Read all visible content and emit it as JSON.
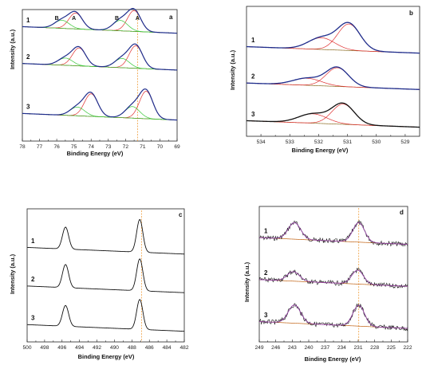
{
  "figure": {
    "panels": [
      "a",
      "b",
      "c",
      "d"
    ],
    "xlabel": "Binding Energy (eV)",
    "ylabel": "Intensity (a.u.)"
  },
  "chart_data": [
    {
      "panel": "a",
      "type": "line",
      "xlabel": "Binding Energy (eV)",
      "ylabel": "Intensity (a.u.)",
      "xlim": [
        78,
        69
      ],
      "xticks": [
        "78",
        "77",
        "76",
        "75",
        "74",
        "73",
        "72",
        "71",
        "70",
        "69"
      ],
      "x_reversed": true,
      "reference_line": 71.3,
      "trace_labels": [
        "1",
        "2",
        "3"
      ],
      "peak_labels": [
        "B",
        "A",
        "B",
        "A"
      ],
      "curves": [
        {
          "label": "1",
          "peaks": [
            {
              "center": 74.9,
              "height": 0.55,
              "width": 0.55
            },
            {
              "center": 71.5,
              "height": 0.72,
              "width": 0.55
            },
            {
              "center": 75.7,
              "height": 0.28,
              "width": 0.6
            },
            {
              "center": 72.3,
              "height": 0.36,
              "width": 0.6
            }
          ]
        },
        {
          "label": "2",
          "peaks": [
            {
              "center": 74.7,
              "height": 0.62,
              "width": 0.55
            },
            {
              "center": 71.4,
              "height": 0.78,
              "width": 0.55
            },
            {
              "center": 75.5,
              "height": 0.25,
              "width": 0.6
            },
            {
              "center": 72.2,
              "height": 0.32,
              "width": 0.6
            }
          ]
        },
        {
          "label": "3",
          "peaks": [
            {
              "center": 74.0,
              "height": 0.78,
              "width": 0.55
            },
            {
              "center": 70.8,
              "height": 0.95,
              "width": 0.55
            },
            {
              "center": 74.8,
              "height": 0.3,
              "width": 0.6
            },
            {
              "center": 71.6,
              "height": 0.4,
              "width": 0.6
            }
          ]
        }
      ],
      "colors": {
        "envelope": "#1f2d8c",
        "component_A": "#e03030",
        "component_B": "#38c838",
        "baseline": "#8a6a20",
        "reference": "#f0a040"
      }
    },
    {
      "panel": "b",
      "type": "line",
      "xlabel": "Binding Energy (eV)",
      "ylabel": "Intensity (a.u.)",
      "xlim": [
        534.5,
        528.5
      ],
      "xticks": [
        "534",
        "533",
        "532",
        "531",
        "530",
        "529"
      ],
      "x_reversed": true,
      "trace_labels": [
        "1",
        "2",
        "3"
      ],
      "curves": [
        {
          "label": "1",
          "peaks": [
            {
              "center": 530.95,
              "height": 0.68,
              "width": 0.55
            },
            {
              "center": 531.9,
              "height": 0.3,
              "width": 0.65
            }
          ]
        },
        {
          "label": "2",
          "peaks": [
            {
              "center": 531.35,
              "height": 0.48,
              "width": 0.55
            },
            {
              "center": 532.4,
              "height": 0.18,
              "width": 0.7
            }
          ]
        },
        {
          "label": "3",
          "peaks": [
            {
              "center": 531.15,
              "height": 0.52,
              "width": 0.55
            },
            {
              "center": 532.2,
              "height": 0.24,
              "width": 0.7
            }
          ]
        }
      ],
      "colors": {
        "envelope_1": "#1f2d8c",
        "envelope_2": "#1f2d8c",
        "envelope_3": "#111111",
        "component": "#e03030",
        "baseline": "#8a6a20"
      }
    },
    {
      "panel": "c",
      "type": "line",
      "xlabel": "Binding Energy (eV)",
      "ylabel": "Intensity (a.u.)",
      "xlim": [
        500,
        482
      ],
      "xticks": [
        "500",
        "498",
        "496",
        "494",
        "492",
        "490",
        "488",
        "486",
        "484",
        "482"
      ],
      "x_reversed": true,
      "reference_line": 486.9,
      "trace_labels": [
        "1",
        "2",
        "3"
      ],
      "curves": [
        {
          "label": "1",
          "peaks": [
            {
              "center": 495.6,
              "height": 0.55,
              "width": 0.5
            },
            {
              "center": 487.1,
              "height": 0.82,
              "width": 0.5
            }
          ]
        },
        {
          "label": "2",
          "peaks": [
            {
              "center": 495.6,
              "height": 0.58,
              "width": 0.5
            },
            {
              "center": 487.1,
              "height": 0.8,
              "width": 0.5
            }
          ]
        },
        {
          "label": "3",
          "peaks": [
            {
              "center": 495.6,
              "height": 0.52,
              "width": 0.5
            },
            {
              "center": 487.1,
              "height": 0.75,
              "width": 0.5
            }
          ]
        }
      ],
      "colors": {
        "line": "#111111",
        "reference": "#f0a040"
      }
    },
    {
      "panel": "d",
      "type": "line",
      "xlabel": "Binding Energy (eV)",
      "ylabel": "Intensity (a.u.)",
      "xlim": [
        249,
        222
      ],
      "xticks": [
        "249",
        "246",
        "243",
        "240",
        "237",
        "234",
        "231",
        "228",
        "225",
        "222"
      ],
      "x_reversed": true,
      "reference_line": 230.9,
      "trace_labels": [
        "1",
        "2",
        "3"
      ],
      "curves": [
        {
          "label": "1",
          "peaks": [
            {
              "center": 242.6,
              "height": 0.38,
              "width": 1.6
            },
            {
              "center": 230.9,
              "height": 0.45,
              "width": 1.5
            }
          ]
        },
        {
          "label": "2",
          "peaks": [
            {
              "center": 242.8,
              "height": 0.22,
              "width": 1.6
            },
            {
              "center": 231.1,
              "height": 0.32,
              "width": 1.5
            }
          ]
        },
        {
          "label": "3",
          "peaks": [
            {
              "center": 242.6,
              "height": 0.42,
              "width": 1.6
            },
            {
              "center": 230.9,
              "height": 0.48,
              "width": 1.5
            }
          ]
        }
      ],
      "colors": {
        "noisy": "#111111",
        "fit": "#9040a0",
        "baseline": "#c06010",
        "reference": "#f0a040"
      }
    }
  ]
}
